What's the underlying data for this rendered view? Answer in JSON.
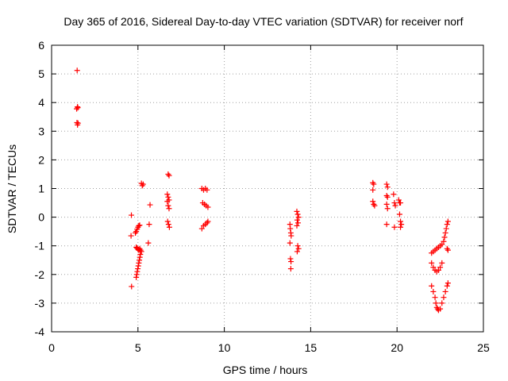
{
  "chart_data": {
    "type": "scatter",
    "title": "Day 365 of 2016, Sidereal Day-to-day VTEC variation (SDTVAR) for receiver norf",
    "xlabel": "GPS time / hours",
    "ylabel": "SDTVAR / TECUs",
    "xlim": [
      0,
      25
    ],
    "ylim": [
      -4,
      6
    ],
    "xticks": [
      0,
      5,
      10,
      15,
      20,
      25
    ],
    "yticks": [
      -4,
      -3,
      -2,
      -1,
      0,
      1,
      2,
      3,
      4,
      5,
      6
    ],
    "grid": true,
    "marker": "+",
    "color": "#ff0000",
    "series": [
      {
        "name": "SDTVAR",
        "points": [
          [
            1.48,
            5.12
          ],
          [
            1.45,
            3.78
          ],
          [
            1.5,
            3.85
          ],
          [
            1.52,
            3.82
          ],
          [
            1.47,
            3.3
          ],
          [
            1.5,
            3.22
          ],
          [
            1.53,
            3.28
          ],
          [
            4.62,
            0.07
          ],
          [
            4.6,
            -0.65
          ],
          [
            4.63,
            -2.42
          ],
          [
            4.85,
            -0.55
          ],
          [
            4.9,
            -0.5
          ],
          [
            4.95,
            -0.42
          ],
          [
            5.0,
            -0.35
          ],
          [
            5.05,
            -0.3
          ],
          [
            5.1,
            -0.28
          ],
          [
            4.9,
            -1.05
          ],
          [
            4.95,
            -1.08
          ],
          [
            5.0,
            -1.12
          ],
          [
            5.05,
            -1.15
          ],
          [
            5.1,
            -1.1
          ],
          [
            5.15,
            -1.15
          ],
          [
            5.2,
            -1.2
          ],
          [
            4.9,
            -2.1
          ],
          [
            4.93,
            -2.0
          ],
          [
            4.96,
            -1.9
          ],
          [
            4.99,
            -1.8
          ],
          [
            5.02,
            -1.7
          ],
          [
            5.05,
            -1.6
          ],
          [
            5.08,
            -1.5
          ],
          [
            5.11,
            -1.4
          ],
          [
            5.14,
            -1.3
          ],
          [
            5.17,
            -1.2
          ],
          [
            5.2,
            1.18
          ],
          [
            5.25,
            1.1
          ],
          [
            5.3,
            1.15
          ],
          [
            5.7,
            0.43
          ],
          [
            5.65,
            -0.25
          ],
          [
            5.6,
            -0.9
          ],
          [
            6.75,
            1.5
          ],
          [
            6.8,
            1.45
          ],
          [
            6.7,
            0.8
          ],
          [
            6.75,
            0.7
          ],
          [
            6.8,
            0.6
          ],
          [
            6.7,
            0.55
          ],
          [
            6.75,
            0.4
          ],
          [
            6.8,
            0.3
          ],
          [
            6.72,
            -0.15
          ],
          [
            6.77,
            -0.25
          ],
          [
            6.82,
            -0.35
          ],
          [
            8.7,
            1.0
          ],
          [
            8.8,
            0.95
          ],
          [
            8.9,
            1.0
          ],
          [
            9.0,
            0.95
          ],
          [
            8.75,
            0.5
          ],
          [
            8.85,
            0.45
          ],
          [
            8.95,
            0.4
          ],
          [
            9.05,
            0.35
          ],
          [
            8.7,
            -0.4
          ],
          [
            8.8,
            -0.3
          ],
          [
            8.9,
            -0.25
          ],
          [
            9.0,
            -0.2
          ],
          [
            9.05,
            -0.15
          ],
          [
            13.8,
            -0.25
          ],
          [
            13.82,
            -0.4
          ],
          [
            13.85,
            -0.55
          ],
          [
            13.87,
            -0.65
          ],
          [
            13.8,
            -0.9
          ],
          [
            13.83,
            -1.45
          ],
          [
            13.86,
            -1.55
          ],
          [
            13.85,
            -1.8
          ],
          [
            14.2,
            0.2
          ],
          [
            14.25,
            0.1
          ],
          [
            14.3,
            0.0
          ],
          [
            14.22,
            -0.1
          ],
          [
            14.27,
            -0.2
          ],
          [
            14.2,
            -0.3
          ],
          [
            14.25,
            -1.0
          ],
          [
            14.3,
            -1.1
          ],
          [
            14.22,
            -1.2
          ],
          [
            18.6,
            1.2
          ],
          [
            18.65,
            1.15
          ],
          [
            18.6,
            0.95
          ],
          [
            18.6,
            0.55
          ],
          [
            18.65,
            0.45
          ],
          [
            18.7,
            0.4
          ],
          [
            19.4,
            1.15
          ],
          [
            19.45,
            1.05
          ],
          [
            19.4,
            0.75
          ],
          [
            19.45,
            0.7
          ],
          [
            19.4,
            0.45
          ],
          [
            19.45,
            0.3
          ],
          [
            19.4,
            -0.25
          ],
          [
            19.8,
            0.8
          ],
          [
            19.85,
            0.5
          ],
          [
            19.9,
            0.4
          ],
          [
            19.85,
            -0.35
          ],
          [
            20.1,
            0.6
          ],
          [
            20.15,
            0.5
          ],
          [
            20.2,
            0.5
          ],
          [
            20.15,
            0.1
          ],
          [
            20.2,
            -0.15
          ],
          [
            20.25,
            -0.25
          ],
          [
            20.2,
            -0.35
          ],
          [
            22.0,
            -1.25
          ],
          [
            22.1,
            -1.2
          ],
          [
            22.2,
            -1.15
          ],
          [
            22.3,
            -1.1
          ],
          [
            22.4,
            -1.05
          ],
          [
            22.5,
            -1.0
          ],
          [
            22.6,
            -0.95
          ],
          [
            22.7,
            -0.85
          ],
          [
            22.75,
            -0.7
          ],
          [
            22.8,
            -0.55
          ],
          [
            22.85,
            -0.4
          ],
          [
            22.9,
            -0.25
          ],
          [
            22.95,
            -0.15
          ],
          [
            22.0,
            -1.6
          ],
          [
            22.1,
            -1.75
          ],
          [
            22.2,
            -1.85
          ],
          [
            22.3,
            -1.9
          ],
          [
            22.4,
            -1.85
          ],
          [
            22.5,
            -1.75
          ],
          [
            22.6,
            -1.6
          ],
          [
            22.0,
            -2.4
          ],
          [
            22.1,
            -2.6
          ],
          [
            22.2,
            -2.8
          ],
          [
            22.25,
            -3.0
          ],
          [
            22.3,
            -3.15
          ],
          [
            22.35,
            -3.2
          ],
          [
            22.4,
            -3.25
          ],
          [
            22.5,
            -3.2
          ],
          [
            22.6,
            -3.0
          ],
          [
            22.7,
            -2.8
          ],
          [
            22.8,
            -2.6
          ],
          [
            22.9,
            -2.4
          ],
          [
            22.95,
            -2.3
          ],
          [
            22.9,
            -1.1
          ],
          [
            22.95,
            -1.15
          ]
        ]
      }
    ]
  }
}
